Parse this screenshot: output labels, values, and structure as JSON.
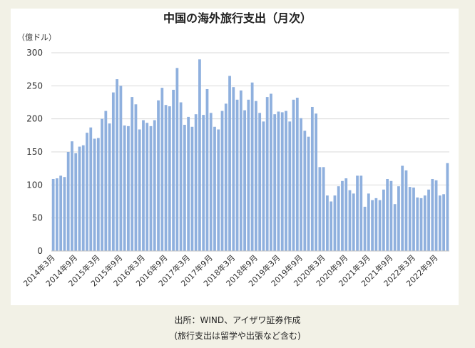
{
  "chart_data": {
    "type": "bar",
    "title": "中国の海外旅行支出（月次）",
    "unit_label": "（億ドル）",
    "ylim": [
      0,
      300
    ],
    "yticks": [
      0,
      50,
      100,
      150,
      200,
      250,
      300
    ],
    "grid": true,
    "bar_color": "#8fb0de",
    "x_tick_labels": [
      "2014年3月",
      "2014年9月",
      "2015年3月",
      "2015年9月",
      "2016年3月",
      "2016年9月",
      "2017年3月",
      "2017年9月",
      "2018年3月",
      "2018年9月",
      "2019年3月",
      "2019年9月",
      "2020年3月",
      "2020年9月",
      "2021年3月",
      "2021年9月",
      "2022年3月",
      "2022年9月"
    ],
    "values": [
      109,
      110,
      114,
      112,
      150,
      166,
      148,
      158,
      160,
      179,
      187,
      170,
      171,
      200,
      212,
      193,
      240,
      260,
      250,
      190,
      189,
      233,
      222,
      184,
      198,
      194,
      189,
      198,
      228,
      247,
      221,
      219,
      244,
      277,
      225,
      191,
      203,
      188,
      207,
      290,
      206,
      245,
      209,
      188,
      184,
      212,
      223,
      265,
      248,
      229,
      243,
      213,
      229,
      255,
      227,
      209,
      196,
      233,
      238,
      207,
      211,
      210,
      212,
      196,
      229,
      232,
      201,
      182,
      173,
      218,
      208,
      127,
      127,
      84,
      75,
      84,
      98,
      106,
      110,
      92,
      87,
      114,
      114,
      67,
      87,
      77,
      80,
      77,
      93,
      109,
      106,
      71,
      98,
      129,
      122,
      97,
      96,
      81,
      80,
      84,
      93,
      109,
      107,
      84,
      86,
      133
    ]
  },
  "footer": {
    "source": "出所：WIND、アイザワ証券作成",
    "note": "(旅行支出は留学や出張など含む)"
  }
}
